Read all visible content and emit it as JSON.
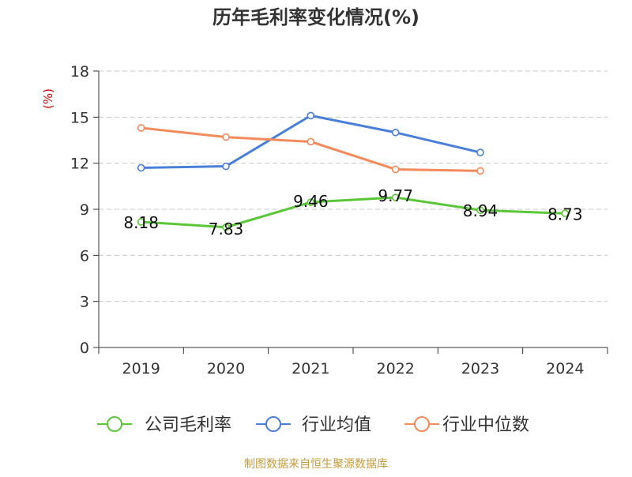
{
  "chart_data": {
    "type": "line",
    "title": "历年毛利率变化情况(%)",
    "ylabel": "(%)",
    "categories": [
      "2019",
      "2020",
      "2021",
      "2022",
      "2023",
      "2024"
    ],
    "ylim": [
      0,
      18
    ],
    "yticks": [
      0,
      3,
      6,
      9,
      12,
      15,
      18
    ],
    "grid": true,
    "legend_position": "bottom",
    "series": [
      {
        "name": "公司毛利率",
        "color": "#5cc639",
        "values": [
          8.18,
          7.83,
          9.46,
          9.77,
          8.94,
          8.73
        ],
        "labels": [
          "8.18",
          "7.83",
          "9.46",
          "9.77",
          "8.94",
          "8.73"
        ]
      },
      {
        "name": "行业均值",
        "color": "#4a7fd9",
        "values": [
          11.7,
          11.8,
          15.1,
          14.0,
          12.7,
          null
        ]
      },
      {
        "name": "行业中位数",
        "color": "#f4895a",
        "values": [
          14.3,
          13.7,
          13.4,
          11.6,
          11.5,
          null
        ]
      }
    ]
  },
  "source": "制图数据来自恒生聚源数据库",
  "colors": {
    "title": "#333333",
    "axis": "#333333",
    "grid": "#c9c9c9",
    "ylabel": "#cc0000",
    "source": "#c69c3d"
  }
}
